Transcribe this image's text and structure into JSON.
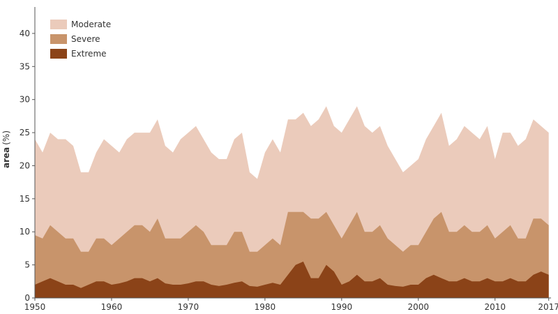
{
  "chart_data": {
    "type": "area",
    "stacked": false,
    "ylabel": "area",
    "ylabel_unit": "(%)",
    "xlabel": "",
    "title": "",
    "ylim": [
      0,
      44
    ],
    "xlim": [
      1950,
      2017.3
    ],
    "y_ticks": [
      0,
      5,
      10,
      15,
      20,
      25,
      30,
      35,
      40
    ],
    "x_ticks": [
      1950,
      1960,
      1970,
      1980,
      1990,
      2000,
      2010,
      2017
    ],
    "legend_position": "top-left",
    "x": [
      1950,
      1951,
      1952,
      1953,
      1954,
      1955,
      1956,
      1957,
      1958,
      1959,
      1960,
      1961,
      1962,
      1963,
      1964,
      1965,
      1966,
      1967,
      1968,
      1969,
      1970,
      1971,
      1972,
      1973,
      1974,
      1975,
      1976,
      1977,
      1978,
      1979,
      1980,
      1981,
      1982,
      1983,
      1984,
      1985,
      1986,
      1987,
      1988,
      1989,
      1990,
      1991,
      1992,
      1993,
      1994,
      1995,
      1996,
      1997,
      1998,
      1999,
      2000,
      2001,
      2002,
      2003,
      2004,
      2005,
      2006,
      2007,
      2008,
      2009,
      2010,
      2011,
      2012,
      2013,
      2014,
      2015,
      2016,
      2017
    ],
    "series": [
      {
        "name": "Moderate",
        "color": "#ebcbbb",
        "values": [
          24,
          22,
          25,
          24,
          24,
          23,
          19,
          19,
          22,
          24,
          23,
          22,
          24,
          25,
          25,
          25,
          27,
          23,
          22,
          24,
          25,
          26,
          24,
          22,
          21,
          21,
          24,
          25,
          19,
          18,
          22,
          24,
          22,
          27,
          27,
          28,
          26,
          27,
          29,
          26,
          25,
          27,
          29,
          26,
          25,
          26,
          23,
          21,
          19,
          20,
          21,
          24,
          26,
          28,
          23,
          24,
          26,
          25,
          24,
          26,
          21,
          25,
          25,
          23,
          24,
          27,
          26,
          25
        ]
      },
      {
        "name": "Severe",
        "color": "#c8946b",
        "values": [
          9.5,
          9,
          11,
          10,
          9,
          9,
          7,
          7,
          9,
          9,
          8,
          9,
          10,
          11,
          11,
          10,
          12,
          9,
          9,
          9,
          10,
          11,
          10,
          8,
          8,
          8,
          10,
          10,
          7,
          7,
          8,
          9,
          8,
          13,
          13,
          13,
          12,
          12,
          13,
          11,
          9,
          11,
          13,
          10,
          10,
          11,
          9,
          8,
          7,
          8,
          8,
          10,
          12,
          13,
          10,
          10,
          11,
          10,
          10,
          11,
          9,
          10,
          11,
          9,
          9,
          12,
          12,
          11
        ]
      },
      {
        "name": "Extreme",
        "color": "#8b4318",
        "values": [
          2,
          2.5,
          3,
          2.5,
          2,
          2,
          1.5,
          2,
          2.5,
          2.5,
          2,
          2.2,
          2.5,
          3,
          3,
          2.5,
          3,
          2.2,
          2,
          2,
          2.2,
          2.5,
          2.5,
          2,
          1.8,
          2,
          2.3,
          2.5,
          1.8,
          1.7,
          2,
          2.3,
          2,
          3.5,
          5,
          5.5,
          3,
          3,
          5,
          4,
          2,
          2.5,
          3.5,
          2.5,
          2.5,
          3,
          2,
          1.8,
          1.7,
          2,
          2,
          3,
          3.5,
          3,
          2.5,
          2.5,
          3,
          2.5,
          2.5,
          3,
          2.5,
          2.5,
          3,
          2.5,
          2.5,
          3.5,
          4,
          3.5
        ]
      }
    ]
  }
}
